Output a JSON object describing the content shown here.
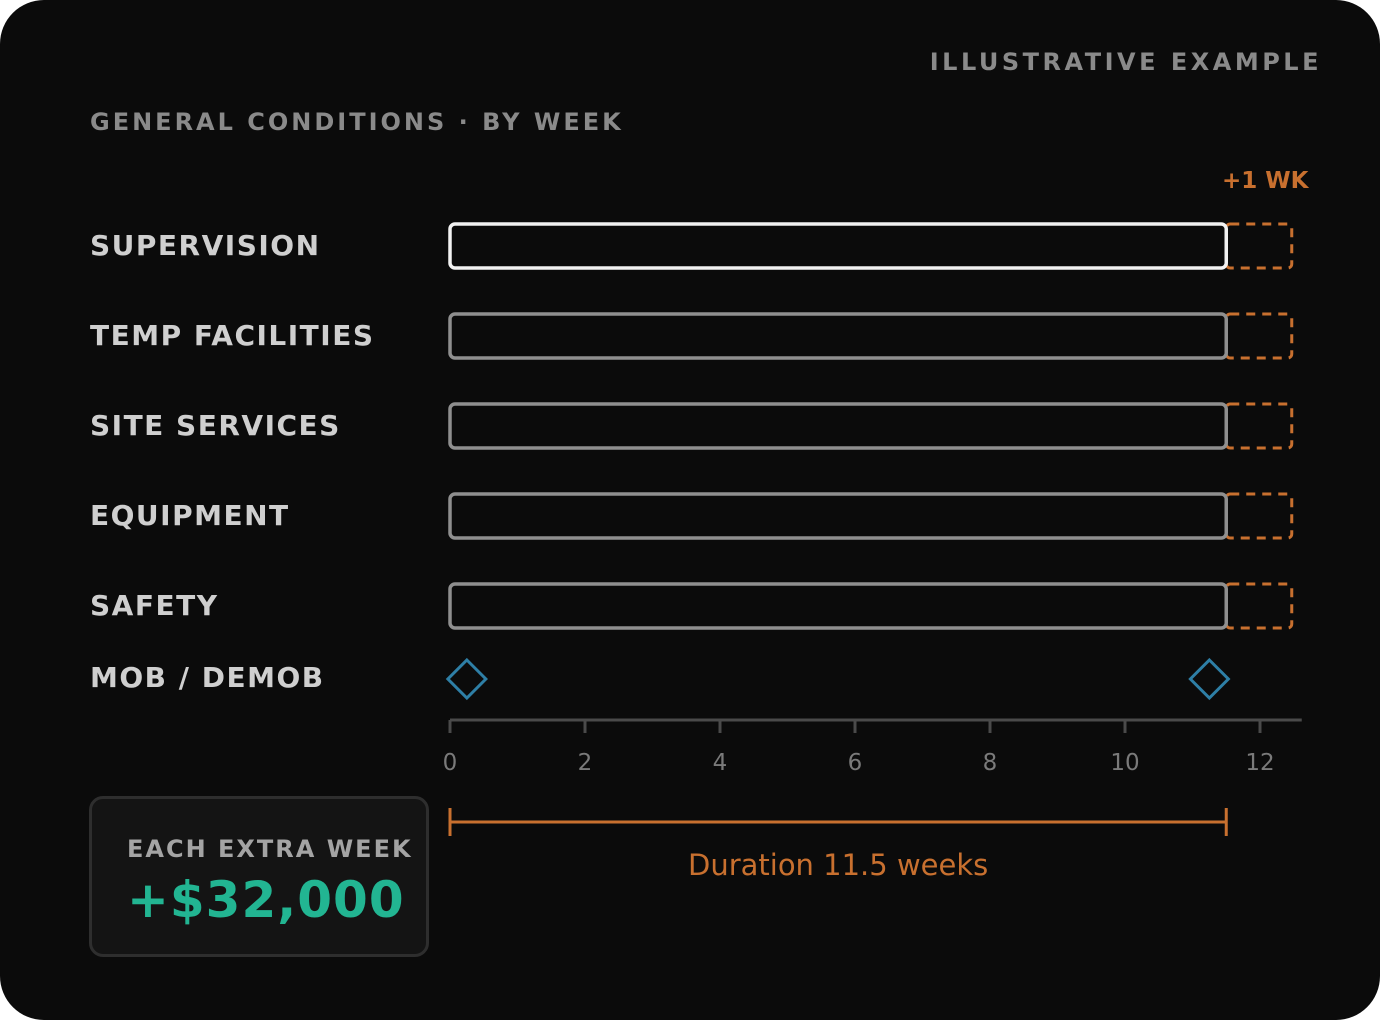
{
  "header": {
    "badge": "ILLUSTRATIVE EXAMPLE",
    "subtitle": "GENERAL CONDITIONS · BY WEEK"
  },
  "cost_callout": {
    "label": "EACH EXTRA WEEK",
    "value": "+$32,000"
  },
  "colors": {
    "background": "#0b0b0b",
    "bar_highlight": "#f2f2f2",
    "bar_default": "#8f8f8f",
    "extension": "#c8702f",
    "milestone": "#2e7fa6",
    "cost": "#22b592"
  },
  "chart_data": {
    "type": "gantt",
    "x_ticks": [
      0,
      2,
      4,
      6,
      8,
      10,
      12
    ],
    "xlim": [
      0,
      12.5
    ],
    "extension_label": "+1 WK",
    "duration_label": "Duration 11.5 weeks",
    "duration": {
      "start": 0,
      "end": 11.5
    },
    "rows": [
      {
        "label": "SUPERVISION",
        "start": 0,
        "end": 11.5,
        "extension_weeks": 1,
        "highlight": true
      },
      {
        "label": "TEMP FACILITIES",
        "start": 0,
        "end": 11.5,
        "extension_weeks": 1,
        "highlight": false
      },
      {
        "label": "SITE SERVICES",
        "start": 0,
        "end": 11.5,
        "extension_weeks": 1,
        "highlight": false
      },
      {
        "label": "EQUIPMENT",
        "start": 0,
        "end": 11.5,
        "extension_weeks": 1,
        "highlight": false
      },
      {
        "label": "SAFETY",
        "start": 0,
        "end": 11.5,
        "extension_weeks": 1,
        "highlight": false
      }
    ],
    "milestones": {
      "label": "MOB / DEMOB",
      "weeks": [
        0.25,
        11.25
      ]
    }
  }
}
